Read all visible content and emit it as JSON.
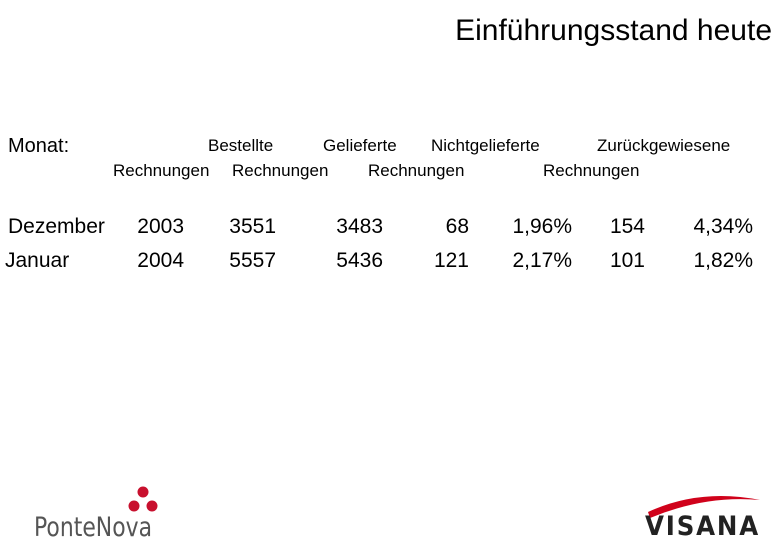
{
  "title": "Einführungsstand heute",
  "table": {
    "row_label": "Monat:",
    "header_top": [
      "Bestellte",
      "Gelieferte",
      "Nichtgelieferte",
      "Zurückgewiesene"
    ],
    "header_bottom": [
      "Rechnungen",
      "Rechnungen",
      "Rechnungen",
      "Rechnungen"
    ],
    "rows": [
      [
        "Dezember",
        "2003",
        "3551",
        "3483",
        "68",
        "1,96%",
        "154",
        "4,34%"
      ],
      [
        "Januar",
        "2004",
        "5557",
        "5436",
        "121",
        "2,17%",
        "101",
        "1,82%"
      ]
    ]
  },
  "logos": {
    "left": "PonteNova",
    "right": "VISANA"
  }
}
